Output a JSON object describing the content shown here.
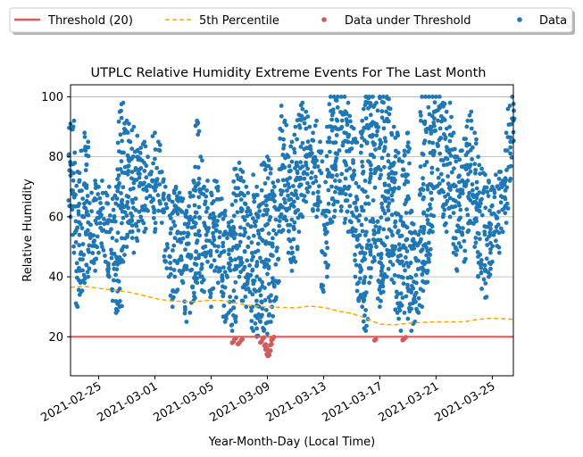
{
  "chart_data": {
    "type": "scatter",
    "title": "UTPLC Relative Humidity Extreme Events For The Last Month",
    "xlabel": "Year-Month-Day (Local Time)",
    "ylabel": "Relative Humidity",
    "x_range": [
      "2021-02-23",
      "2021-03-26T12:00"
    ],
    "ylim": [
      7,
      104
    ],
    "y_ticks": [
      20,
      40,
      60,
      80,
      100
    ],
    "x_ticks": [
      "2021-02-25",
      "2021-03-01",
      "2021-03-05",
      "2021-03-09",
      "2021-03-13",
      "2021-03-17",
      "2021-03-21",
      "2021-03-25"
    ],
    "grid": "horizontal",
    "legend_position": "top, above plot",
    "colors": {
      "threshold": "#e05a5a",
      "percentile": "#ffa500",
      "under": "#cd5c5c",
      "data": "#1f77b4"
    },
    "legend": [
      {
        "label": "Threshold (20)",
        "marker": "solid-line",
        "color": "#e05a5a"
      },
      {
        "label": "5th Percentile",
        "marker": "dashed-line",
        "color": "#ffa500"
      },
      {
        "label": "Data under Threshold",
        "marker": "dot",
        "color": "#cd5c5c"
      },
      {
        "label": "Data",
        "marker": "dot",
        "color": "#1f77b4"
      }
    ],
    "threshold": 20,
    "percentile_series": {
      "name": "5th Percentile",
      "x": [
        "2021-02-23",
        "2021-02-24",
        "2021-02-25",
        "2021-02-26",
        "2021-02-27",
        "2021-02-28",
        "2021-03-01",
        "2021-03-02",
        "2021-03-03",
        "2021-03-04",
        "2021-03-05",
        "2021-03-06",
        "2021-03-07",
        "2021-03-08",
        "2021-03-09",
        "2021-03-10",
        "2021-03-11",
        "2021-03-12",
        "2021-03-13",
        "2021-03-14",
        "2021-03-15",
        "2021-03-16",
        "2021-03-17",
        "2021-03-18",
        "2021-03-19",
        "2021-03-20",
        "2021-03-21",
        "2021-03-22",
        "2021-03-23",
        "2021-03-24",
        "2021-03-25",
        "2021-03-26T12:00"
      ],
      "values": [
        36.5,
        36.8,
        36.2,
        35.6,
        35.0,
        34.0,
        32.8,
        32.0,
        31.8,
        31.8,
        32.2,
        32.0,
        31.0,
        30.2,
        30.0,
        29.8,
        29.6,
        30.2,
        29.8,
        28.6,
        27.8,
        26.2,
        24.2,
        24.0,
        24.5,
        24.8,
        25.0,
        25.0,
        25.0,
        25.8,
        26.2,
        25.8
      ]
    },
    "under_threshold_points": {
      "name": "Data under Threshold",
      "points": [
        {
          "x": "2021-03-06T12:00",
          "y": 18.0
        },
        {
          "x": "2021-03-06T16:00",
          "y": 19.2
        },
        {
          "x": "2021-03-06T22:00",
          "y": 17.6
        },
        {
          "x": "2021-03-07T03:00",
          "y": 18.8
        },
        {
          "x": "2021-03-08T12:00",
          "y": 18.1
        },
        {
          "x": "2021-03-08T16:00",
          "y": 19.4
        },
        {
          "x": "2021-03-08T19:00",
          "y": 17.1
        },
        {
          "x": "2021-03-08T21:00",
          "y": 15.8
        },
        {
          "x": "2021-03-08T23:00",
          "y": 14.2
        },
        {
          "x": "2021-03-09T01:00",
          "y": 13.6
        },
        {
          "x": "2021-03-09T03:00",
          "y": 15.0
        },
        {
          "x": "2021-03-09T05:00",
          "y": 17.2
        },
        {
          "x": "2021-03-09T07:00",
          "y": 18.9
        },
        {
          "x": "2021-03-09T09:00",
          "y": 19.6
        },
        {
          "x": "2021-03-16T15:00",
          "y": 18.8
        },
        {
          "x": "2021-03-18T15:00",
          "y": 18.9
        },
        {
          "x": "2021-03-18T18:00",
          "y": 19.5
        }
      ]
    },
    "data_series": {
      "name": "Data",
      "segments": [
        {
          "x": [
            "2021-02-23T00:00",
            "2021-02-23T06:00",
            "2021-02-23T12:00",
            "2021-02-23T18:00",
            "2021-02-24T00:00",
            "2021-02-24T06:00",
            "2021-02-24T12:00",
            "2021-02-24T18:00",
            "2021-02-25T00:00",
            "2021-02-25T06:00",
            "2021-02-25T12:00",
            "2021-02-25T18:00",
            "2021-02-26T00:00",
            "2021-02-26T06:00",
            "2021-02-26T12:00",
            "2021-02-26T18:00",
            "2021-02-27T00:00",
            "2021-02-27T06:00",
            "2021-02-27T12:00",
            "2021-02-27T18:00",
            "2021-02-28T00:00",
            "2021-02-28T06:00",
            "2021-02-28T12:00",
            "2021-02-28T18:00"
          ],
          "y_max": [
            91,
            92,
            75,
            82,
            88,
            85,
            68,
            72,
            70,
            72,
            68,
            70,
            66,
            70,
            95,
            98,
            92,
            85,
            90,
            87,
            83,
            85,
            80,
            75
          ],
          "y_min": [
            60,
            48,
            30,
            35,
            38,
            40,
            45,
            42,
            48,
            50,
            45,
            40,
            32,
            28,
            30,
            45,
            50,
            55,
            48,
            52,
            60,
            55,
            62,
            65
          ]
        },
        {
          "x": [
            "2021-03-01T00:00",
            "2021-03-01T06:00",
            "2021-03-01T12:00",
            "2021-03-01T18:00",
            "2021-03-02T00:00",
            "2021-03-02T06:00",
            "2021-03-02T12:00",
            "2021-03-02T18:00",
            "2021-03-03T00:00",
            "2021-03-03T06:00",
            "2021-03-03T12:00",
            "2021-03-03T18:00",
            "2021-03-04T00:00",
            "2021-03-04T06:00",
            "2021-03-04T12:00",
            "2021-03-04T18:00",
            "2021-03-05T00:00",
            "2021-03-05T06:00",
            "2021-03-05T12:00",
            "2021-03-05T18:00",
            "2021-03-06T00:00",
            "2021-03-06T06:00",
            "2021-03-06T12:00",
            "2021-03-06T18:00"
          ],
          "y_max": [
            88,
            85,
            75,
            70,
            67,
            65,
            70,
            68,
            66,
            62,
            68,
            72,
            92,
            80,
            70,
            72,
            68,
            72,
            70,
            66,
            62,
            58,
            64,
            76
          ],
          "y_min": [
            55,
            62,
            58,
            45,
            40,
            30,
            35,
            42,
            38,
            25,
            28,
            32,
            38,
            40,
            35,
            45,
            30,
            42,
            38,
            35,
            25,
            28,
            22,
            25
          ]
        },
        {
          "x": [
            "2021-03-07T00:00",
            "2021-03-07T06:00",
            "2021-03-07T12:00",
            "2021-03-07T18:00",
            "2021-03-08T00:00",
            "2021-03-08T06:00",
            "2021-03-08T12:00",
            "2021-03-08T18:00",
            "2021-03-09T00:00",
            "2021-03-09T06:00",
            "2021-03-09T12:00",
            "2021-03-09T18:00",
            "2021-03-10T00:00",
            "2021-03-10T06:00",
            "2021-03-10T12:00",
            "2021-03-10T18:00",
            "2021-03-11T00:00",
            "2021-03-11T06:00",
            "2021-03-11T12:00",
            "2021-03-11T18:00",
            "2021-03-12T00:00",
            "2021-03-12T06:00",
            "2021-03-12T12:00",
            "2021-03-12T18:00"
          ],
          "y_max": [
            78,
            75,
            70,
            62,
            74,
            70,
            64,
            78,
            80,
            76,
            70,
            72,
            97,
            92,
            80,
            85,
            90,
            94,
            98,
            95,
            90,
            88,
            92,
            85
          ],
          "y_min": [
            40,
            32,
            30,
            35,
            22,
            20,
            25,
            22,
            21,
            25,
            32,
            38,
            55,
            60,
            48,
            42,
            45,
            55,
            60,
            65,
            70,
            62,
            60,
            65
          ]
        },
        {
          "x": [
            "2021-03-13T00:00",
            "2021-03-13T06:00",
            "2021-03-13T12:00",
            "2021-03-13T18:00",
            "2021-03-14T00:00",
            "2021-03-14T06:00",
            "2021-03-14T12:00",
            "2021-03-14T18:00",
            "2021-03-15T00:00",
            "2021-03-15T06:00",
            "2021-03-15T12:00",
            "2021-03-15T18:00",
            "2021-03-16T00:00",
            "2021-03-16T06:00",
            "2021-03-16T12:00",
            "2021-03-16T18:00",
            "2021-03-17T00:00",
            "2021-03-17T06:00",
            "2021-03-17T12:00",
            "2021-03-17T18:00",
            "2021-03-18T00:00",
            "2021-03-18T06:00",
            "2021-03-18T12:00",
            "2021-03-18T18:00"
          ],
          "y_max": [
            62,
            90,
            100,
            100,
            100,
            100,
            100,
            98,
            90,
            86,
            70,
            92,
            100,
            100,
            100,
            98,
            100,
            100,
            100,
            96,
            90,
            88,
            60,
            82
          ],
          "y_min": [
            35,
            40,
            58,
            60,
            65,
            62,
            58,
            55,
            55,
            40,
            32,
            30,
            22,
            38,
            45,
            50,
            30,
            35,
            40,
            45,
            38,
            28,
            22,
            28
          ]
        },
        {
          "x": [
            "2021-03-19T00:00",
            "2021-03-19T06:00",
            "2021-03-19T12:00",
            "2021-03-19T18:00",
            "2021-03-20T00:00",
            "2021-03-20T06:00",
            "2021-03-20T12:00",
            "2021-03-20T18:00",
            "2021-03-21T00:00",
            "2021-03-21T06:00",
            "2021-03-21T12:00",
            "2021-03-21T18:00",
            "2021-03-22T00:00",
            "2021-03-22T06:00",
            "2021-03-22T12:00",
            "2021-03-22T18:00",
            "2021-03-23T00:00",
            "2021-03-23T06:00",
            "2021-03-23T12:00",
            "2021-03-23T18:00",
            "2021-03-24T00:00",
            "2021-03-24T06:00",
            "2021-03-24T12:00",
            "2021-03-24T18:00"
          ],
          "y_max": [
            88,
            62,
            55,
            54,
            100,
            100,
            100,
            100,
            100,
            100,
            98,
            95,
            98,
            88,
            80,
            82,
            86,
            92,
            95,
            88,
            80,
            76,
            74,
            72
          ],
          "y_min": [
            26,
            22,
            25,
            28,
            30,
            38,
            45,
            55,
            70,
            68,
            60,
            55,
            60,
            48,
            42,
            50,
            45,
            55,
            58,
            50,
            40,
            36,
            33,
            40
          ]
        },
        {
          "x": [
            "2021-03-25T00:00",
            "2021-03-25T06:00",
            "2021-03-25T12:00",
            "2021-03-25T18:00",
            "2021-03-26T00:00",
            "2021-03-26T06:00",
            "2021-03-26T10:00"
          ],
          "y_max": [
            70,
            74,
            75,
            72,
            88,
            97,
            100
          ],
          "y_min": [
            45,
            52,
            48,
            55,
            58,
            72,
            85
          ]
        }
      ]
    }
  }
}
